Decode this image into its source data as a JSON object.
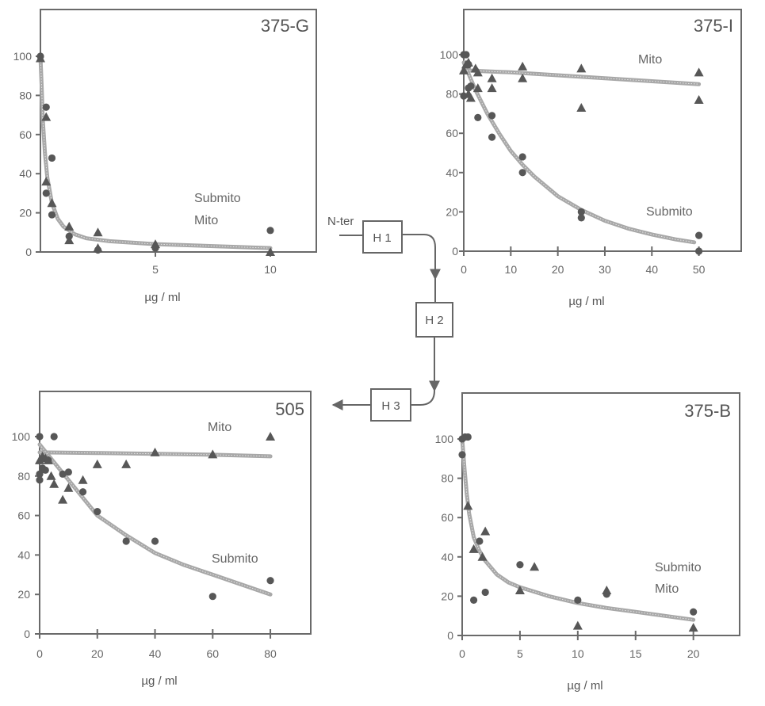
{
  "chart_data": [
    {
      "type": "scatter",
      "title": "375-G",
      "xlabel": "µg / ml",
      "ylabel": "",
      "xlim": [
        0,
        12
      ],
      "ylim": [
        0,
        100
      ],
      "xticks": [
        5,
        10
      ],
      "yticks": [
        0,
        20,
        40,
        60,
        80,
        100
      ],
      "series_labels": [
        "Submito",
        "Mito"
      ],
      "series": [
        {
          "name": "Submito",
          "marker": "circle",
          "points": [
            [
              0,
              100
            ],
            [
              0.25,
              74
            ],
            [
              0.5,
              48
            ],
            [
              0.25,
              30
            ],
            [
              0.5,
              19
            ],
            [
              1.25,
              8
            ],
            [
              2.5,
              1
            ],
            [
              5,
              2
            ],
            [
              10,
              11
            ]
          ]
        },
        {
          "name": "Mito",
          "marker": "triangle",
          "points": [
            [
              0,
              99
            ],
            [
              0.25,
              69
            ],
            [
              0.25,
              36
            ],
            [
              0.5,
              25
            ],
            [
              1.25,
              13
            ],
            [
              1.25,
              6
            ],
            [
              2.5,
              10
            ],
            [
              2.5,
              2
            ],
            [
              5,
              4
            ],
            [
              10,
              0
            ]
          ]
        }
      ],
      "fits": [
        {
          "name": "combined fit",
          "points": [
            [
              0,
              100
            ],
            [
              0.05,
              85
            ],
            [
              0.1,
              68
            ],
            [
              0.2,
              50
            ],
            [
              0.3,
              38
            ],
            [
              0.5,
              25
            ],
            [
              0.75,
              17
            ],
            [
              1,
              13
            ],
            [
              1.5,
              9
            ],
            [
              2,
              7
            ],
            [
              3,
              5.5
            ],
            [
              5,
              4
            ],
            [
              7.5,
              3
            ],
            [
              10,
              2
            ]
          ]
        }
      ]
    },
    {
      "type": "scatter",
      "title": "375-I",
      "xlabel": "µg / ml",
      "ylabel": "",
      "xlim": [
        0,
        59
      ],
      "ylim": [
        0,
        100
      ],
      "xticks": [
        0,
        10,
        20,
        30,
        40,
        50
      ],
      "yticks": [
        0,
        20,
        40,
        60,
        80,
        100
      ],
      "series_labels": [
        "Mito",
        "Submito"
      ],
      "series": [
        {
          "name": "Mito",
          "marker": "triangle",
          "points": [
            [
              0,
              92
            ],
            [
              0.5,
              95
            ],
            [
              1,
              96
            ],
            [
              2.5,
              93
            ],
            [
              3,
              91
            ],
            [
              1,
              80
            ],
            [
              1.5,
              78
            ],
            [
              3,
              83
            ],
            [
              6,
              88
            ],
            [
              6,
              83
            ],
            [
              12.5,
              94
            ],
            [
              12.5,
              88
            ],
            [
              25,
              93
            ],
            [
              25,
              73
            ],
            [
              50,
              91
            ],
            [
              50,
              77
            ]
          ]
        },
        {
          "name": "Submito",
          "marker": "circle",
          "points": [
            [
              0,
              100
            ],
            [
              0.5,
              100
            ],
            [
              0,
              79
            ],
            [
              1,
              83
            ],
            [
              1.5,
              84
            ],
            [
              1,
              95
            ],
            [
              3,
              68
            ],
            [
              6,
              69
            ],
            [
              6,
              58
            ],
            [
              12.5,
              48
            ],
            [
              12.5,
              40
            ],
            [
              25,
              20
            ],
            [
              25,
              17
            ],
            [
              50,
              8
            ],
            [
              50,
              0
            ]
          ]
        }
      ],
      "fits": [
        {
          "name": "Mito fit",
          "points": [
            [
              0,
              92
            ],
            [
              10,
              91
            ],
            [
              20,
              89.5
            ],
            [
              30,
              88
            ],
            [
              40,
              86.5
            ],
            [
              50,
              85
            ]
          ]
        },
        {
          "name": "Submito fit",
          "points": [
            [
              0,
              96
            ],
            [
              2.5,
              82
            ],
            [
              5,
              70
            ],
            [
              7.5,
              60
            ],
            [
              10,
              51
            ],
            [
              12.5,
              44
            ],
            [
              15,
              38
            ],
            [
              20,
              28
            ],
            [
              25,
              21
            ],
            [
              30,
              15.5
            ],
            [
              35,
              11.5
            ],
            [
              40,
              8.5
            ],
            [
              45,
              6
            ],
            [
              49,
              4.5
            ]
          ]
        }
      ]
    },
    {
      "type": "scatter",
      "title": "505",
      "xlabel": "µg / ml",
      "ylabel": "",
      "xlim": [
        0,
        94
      ],
      "ylim": [
        0,
        100
      ],
      "xticks": [
        0,
        20,
        40,
        60,
        80
      ],
      "yticks": [
        0,
        20,
        40,
        60,
        80,
        100
      ],
      "series_labels": [
        "Mito",
        "Submito"
      ],
      "series": [
        {
          "name": "Mito",
          "marker": "triangle",
          "points": [
            [
              0,
              88
            ],
            [
              1,
              90
            ],
            [
              2,
              89
            ],
            [
              3,
              88
            ],
            [
              4,
              80
            ],
            [
              5,
              76
            ],
            [
              8,
              68
            ],
            [
              10,
              74
            ],
            [
              15,
              78
            ],
            [
              20,
              86
            ],
            [
              30,
              86
            ],
            [
              40,
              92
            ],
            [
              60,
              91
            ],
            [
              80,
              100
            ]
          ]
        },
        {
          "name": "Submito",
          "marker": "circle",
          "points": [
            [
              0,
              100
            ],
            [
              5,
              100
            ],
            [
              0,
              78
            ],
            [
              0,
              81
            ],
            [
              1,
              84
            ],
            [
              2,
              83
            ],
            [
              3,
              88
            ],
            [
              8,
              81
            ],
            [
              10,
              82
            ],
            [
              15,
              72
            ],
            [
              20,
              62
            ],
            [
              30,
              47
            ],
            [
              40,
              47
            ],
            [
              60,
              19
            ],
            [
              80,
              27
            ]
          ]
        }
      ],
      "fits": [
        {
          "name": "Mito fit",
          "points": [
            [
              0,
              92
            ],
            [
              20,
              91.7
            ],
            [
              40,
              91.3
            ],
            [
              60,
              90.8
            ],
            [
              80,
              90
            ]
          ]
        },
        {
          "name": "Submito fit",
          "points": [
            [
              0,
              96
            ],
            [
              5,
              87
            ],
            [
              10,
              78
            ],
            [
              15,
              69
            ],
            [
              20,
              60
            ],
            [
              30,
              50
            ],
            [
              40,
              41
            ],
            [
              50,
              35
            ],
            [
              60,
              30
            ],
            [
              70,
              25
            ],
            [
              80,
              20
            ]
          ]
        }
      ]
    },
    {
      "type": "scatter",
      "title": "375-B",
      "xlabel": "µg / ml",
      "ylabel": "",
      "xlim": [
        0,
        24
      ],
      "ylim": [
        0,
        100
      ],
      "xticks": [
        0,
        5,
        10,
        15,
        20
      ],
      "yticks": [
        0,
        20,
        40,
        60,
        80,
        100
      ],
      "series_labels": [
        "Submito",
        "Mito"
      ],
      "series": [
        {
          "name": "Submito",
          "marker": "circle",
          "points": [
            [
              0,
              100
            ],
            [
              0,
              92
            ],
            [
              0.25,
              101
            ],
            [
              0.5,
              101
            ],
            [
              1,
              18
            ],
            [
              1.5,
              48
            ],
            [
              2,
              22
            ],
            [
              5,
              36
            ],
            [
              10,
              18
            ],
            [
              12.5,
              21
            ],
            [
              20,
              12
            ]
          ]
        },
        {
          "name": "Mito",
          "marker": "triangle",
          "points": [
            [
              0.5,
              66
            ],
            [
              1,
              44
            ],
            [
              1.75,
              40
            ],
            [
              2,
              53
            ],
            [
              5,
              23
            ],
            [
              6.25,
              35
            ],
            [
              10,
              5
            ],
            [
              12.5,
              23
            ],
            [
              20,
              4
            ]
          ]
        }
      ],
      "fits": [
        {
          "name": "combined fit",
          "points": [
            [
              0,
              100
            ],
            [
              0.2,
              85
            ],
            [
              0.4,
              72
            ],
            [
              0.6,
              62
            ],
            [
              1,
              50
            ],
            [
              1.5,
              43
            ],
            [
              2,
              38
            ],
            [
              3,
              31
            ],
            [
              4,
              27
            ],
            [
              5,
              24.5
            ],
            [
              7.5,
              20
            ],
            [
              10,
              16.5
            ],
            [
              12.5,
              14
            ],
            [
              15,
              12
            ],
            [
              17.5,
              10
            ],
            [
              20,
              8
            ]
          ]
        }
      ]
    }
  ],
  "diagram": {
    "start_label": "N-ter",
    "boxes": [
      "H 1",
      "H 2",
      "H 3"
    ]
  },
  "colors": {
    "marker": "#575757",
    "axis": "#6a6a6a",
    "fit": "#a8a8a8"
  }
}
